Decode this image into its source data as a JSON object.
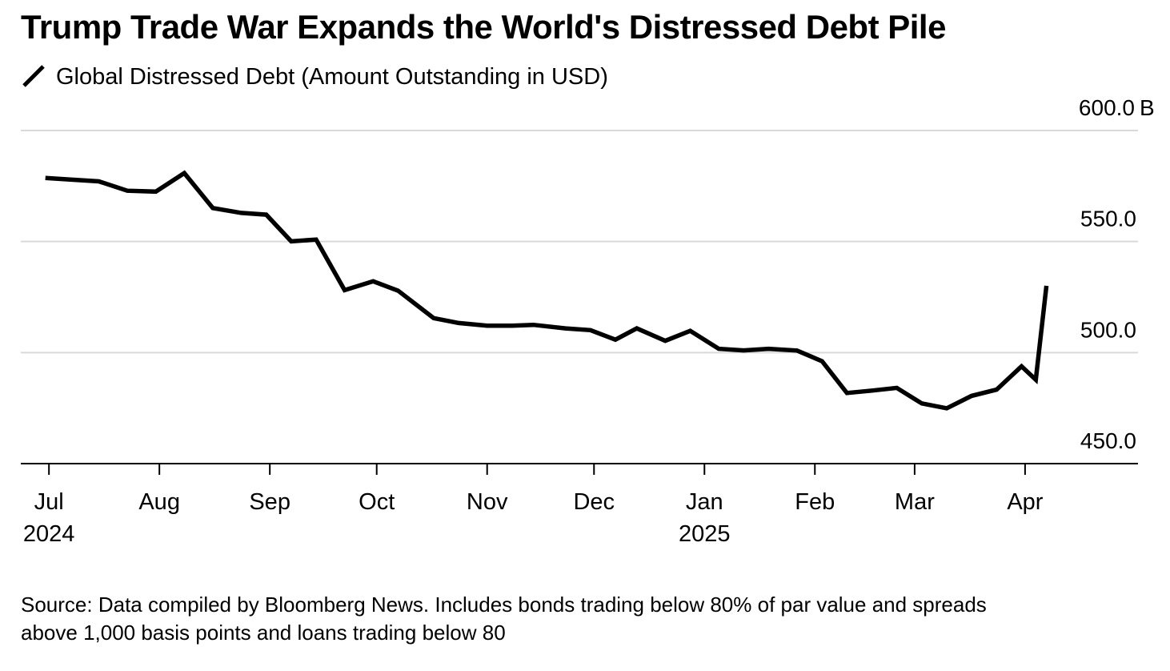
{
  "title": "Trump Trade War Expands the World's Distressed Debt Pile",
  "legend": {
    "label": "Global Distressed Debt (Amount Outstanding in USD)"
  },
  "footnote": {
    "line1": "Source: Data compiled by Bloomberg News. Includes bonds trading below 80% of par value and spreads",
    "line2": "above 1,000 basis points and loans trading below 80"
  },
  "colors": {
    "line": "#000000",
    "grid": "#d9d9d9",
    "axis": "#000000",
    "text": "#000000"
  },
  "chart_data": {
    "type": "line",
    "title": "Trump Trade War Expands the World's Distressed Debt Pile",
    "xlabel": "",
    "ylabel": "",
    "y_unit": "B",
    "ylim": [
      450,
      600
    ],
    "yticks": [
      {
        "value": 450,
        "label": "450.0"
      },
      {
        "value": 500,
        "label": "500.0"
      },
      {
        "value": 550,
        "label": "550.0"
      },
      {
        "value": 600,
        "label": "600.0"
      }
    ],
    "xlim": [
      "2024-06-24",
      "2025-04-30"
    ],
    "xticks": [
      {
        "date": "2024-07-01",
        "label": "Jul",
        "sublabel": "2024"
      },
      {
        "date": "2024-08-01",
        "label": "Aug",
        "sublabel": ""
      },
      {
        "date": "2024-09-01",
        "label": "Sep",
        "sublabel": ""
      },
      {
        "date": "2024-10-01",
        "label": "Oct",
        "sublabel": ""
      },
      {
        "date": "2024-11-01",
        "label": "Nov",
        "sublabel": ""
      },
      {
        "date": "2024-12-01",
        "label": "Dec",
        "sublabel": ""
      },
      {
        "date": "2025-01-01",
        "label": "Jan",
        "sublabel": "2025"
      },
      {
        "date": "2025-02-01",
        "label": "Feb",
        "sublabel": ""
      },
      {
        "date": "2025-03-01",
        "label": "Mar",
        "sublabel": ""
      },
      {
        "date": "2025-04-01",
        "label": "Apr",
        "sublabel": ""
      }
    ],
    "grid": true,
    "legend_position": "top-left",
    "series": [
      {
        "name": "Global Distressed Debt (Amount Outstanding in USD)",
        "points": [
          {
            "x": "2024-06-30",
            "y": 578.6
          },
          {
            "x": "2024-07-07",
            "y": 577.9
          },
          {
            "x": "2024-07-15",
            "y": 577.1
          },
          {
            "x": "2024-07-23",
            "y": 572.9
          },
          {
            "x": "2024-07-31",
            "y": 572.5
          },
          {
            "x": "2024-08-08",
            "y": 580.8
          },
          {
            "x": "2024-08-16",
            "y": 565.1
          },
          {
            "x": "2024-08-24",
            "y": 562.9
          },
          {
            "x": "2024-08-31",
            "y": 562.1
          },
          {
            "x": "2024-09-07",
            "y": 550.1
          },
          {
            "x": "2024-09-14",
            "y": 550.9
          },
          {
            "x": "2024-09-22",
            "y": 528.1
          },
          {
            "x": "2024-09-30",
            "y": 532.1
          },
          {
            "x": "2024-10-07",
            "y": 527.9
          },
          {
            "x": "2024-10-17",
            "y": 515.5
          },
          {
            "x": "2024-10-24",
            "y": 513.3
          },
          {
            "x": "2024-11-01",
            "y": 512.1
          },
          {
            "x": "2024-11-08",
            "y": 512.1
          },
          {
            "x": "2024-11-14",
            "y": 512.5
          },
          {
            "x": "2024-11-23",
            "y": 510.9
          },
          {
            "x": "2024-11-30",
            "y": 510.1
          },
          {
            "x": "2024-12-07",
            "y": 505.8
          },
          {
            "x": "2024-12-13",
            "y": 510.9
          },
          {
            "x": "2024-12-21",
            "y": 505.3
          },
          {
            "x": "2024-12-28",
            "y": 509.8
          },
          {
            "x": "2025-01-05",
            "y": 501.7
          },
          {
            "x": "2025-01-12",
            "y": 501.0
          },
          {
            "x": "2025-01-19",
            "y": 501.7
          },
          {
            "x": "2025-01-27",
            "y": 500.9
          },
          {
            "x": "2025-02-03",
            "y": 496.1
          },
          {
            "x": "2025-02-10",
            "y": 481.8
          },
          {
            "x": "2025-02-17",
            "y": 482.9
          },
          {
            "x": "2025-02-24",
            "y": 484.1
          },
          {
            "x": "2025-03-03",
            "y": 477.1
          },
          {
            "x": "2025-03-10",
            "y": 474.9
          },
          {
            "x": "2025-03-17",
            "y": 480.5
          },
          {
            "x": "2025-03-24",
            "y": 483.3
          },
          {
            "x": "2025-03-31",
            "y": 493.8
          },
          {
            "x": "2025-04-04",
            "y": 487.8
          },
          {
            "x": "2025-04-07",
            "y": 530.1
          }
        ]
      }
    ]
  }
}
